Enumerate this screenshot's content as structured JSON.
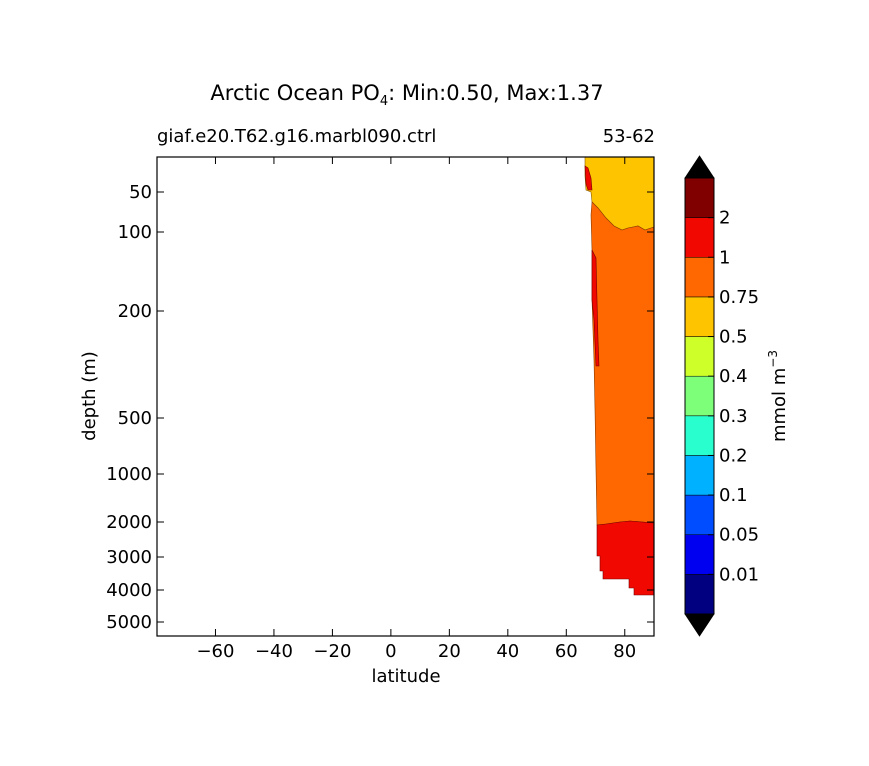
{
  "chart_data": {
    "type": "heatmap",
    "title_prefix": "Arctic Ocean PO",
    "title_subscript": "4",
    "title_suffix": ": Min:0.50, Max:1.37",
    "subtitle_left": "giaf.e20.T62.g16.marbl090.ctrl",
    "subtitle_right": "53-62",
    "xlabel": "latitude",
    "ylabel": "depth (m)",
    "xlim": [
      -80,
      90
    ],
    "xticks": [
      -60,
      -40,
      -20,
      0,
      20,
      40,
      60,
      80
    ],
    "xtick_labels": [
      "−60",
      "−40",
      "−20",
      "0",
      "20",
      "40",
      "60",
      "80"
    ],
    "ylim": [
      5500,
      25
    ],
    "yticks": [
      50,
      100,
      200,
      500,
      1000,
      2000,
      3000,
      4000,
      5000
    ],
    "yscale": "nonlinear (stretched upper ocean)",
    "colorbar": {
      "label_base": "mmol m",
      "label_exponent": "−3",
      "levels": [
        0,
        0.01,
        0.05,
        0.1,
        0.2,
        0.3,
        0.4,
        0.5,
        0.75,
        1,
        2,
        5
      ],
      "tick_labels": [
        "0.01",
        "0.05",
        "0.1",
        "0.2",
        "0.3",
        "0.4",
        "0.5",
        "0.75",
        "1",
        "2"
      ],
      "colors": [
        "#000080",
        "#0000f1",
        "#004dff",
        "#00b1ff",
        "#29ffce",
        "#7dff7a",
        "#ceff29",
        "#ffc400",
        "#ff6800",
        "#f10800",
        "#800000"
      ],
      "extend": "both",
      "extend_color": "#000000"
    },
    "regions": [
      {
        "class": "0.5-0.75",
        "color": "#ffc400",
        "description": "surface layer north of about 66°N down to about 80-100 m"
      },
      {
        "class": "0.75-1",
        "color": "#ff6800",
        "description": "intermediate layer from about 100 m to 2000 m, north of about 68°N"
      },
      {
        "class": "1-2",
        "color": "#f10800",
        "description": "deep layer below 2000 m north of about 71°N, plus a thin strip near 70°N at 150-300 m and a thin strip near 67°N at 25-45 m"
      }
    ]
  }
}
